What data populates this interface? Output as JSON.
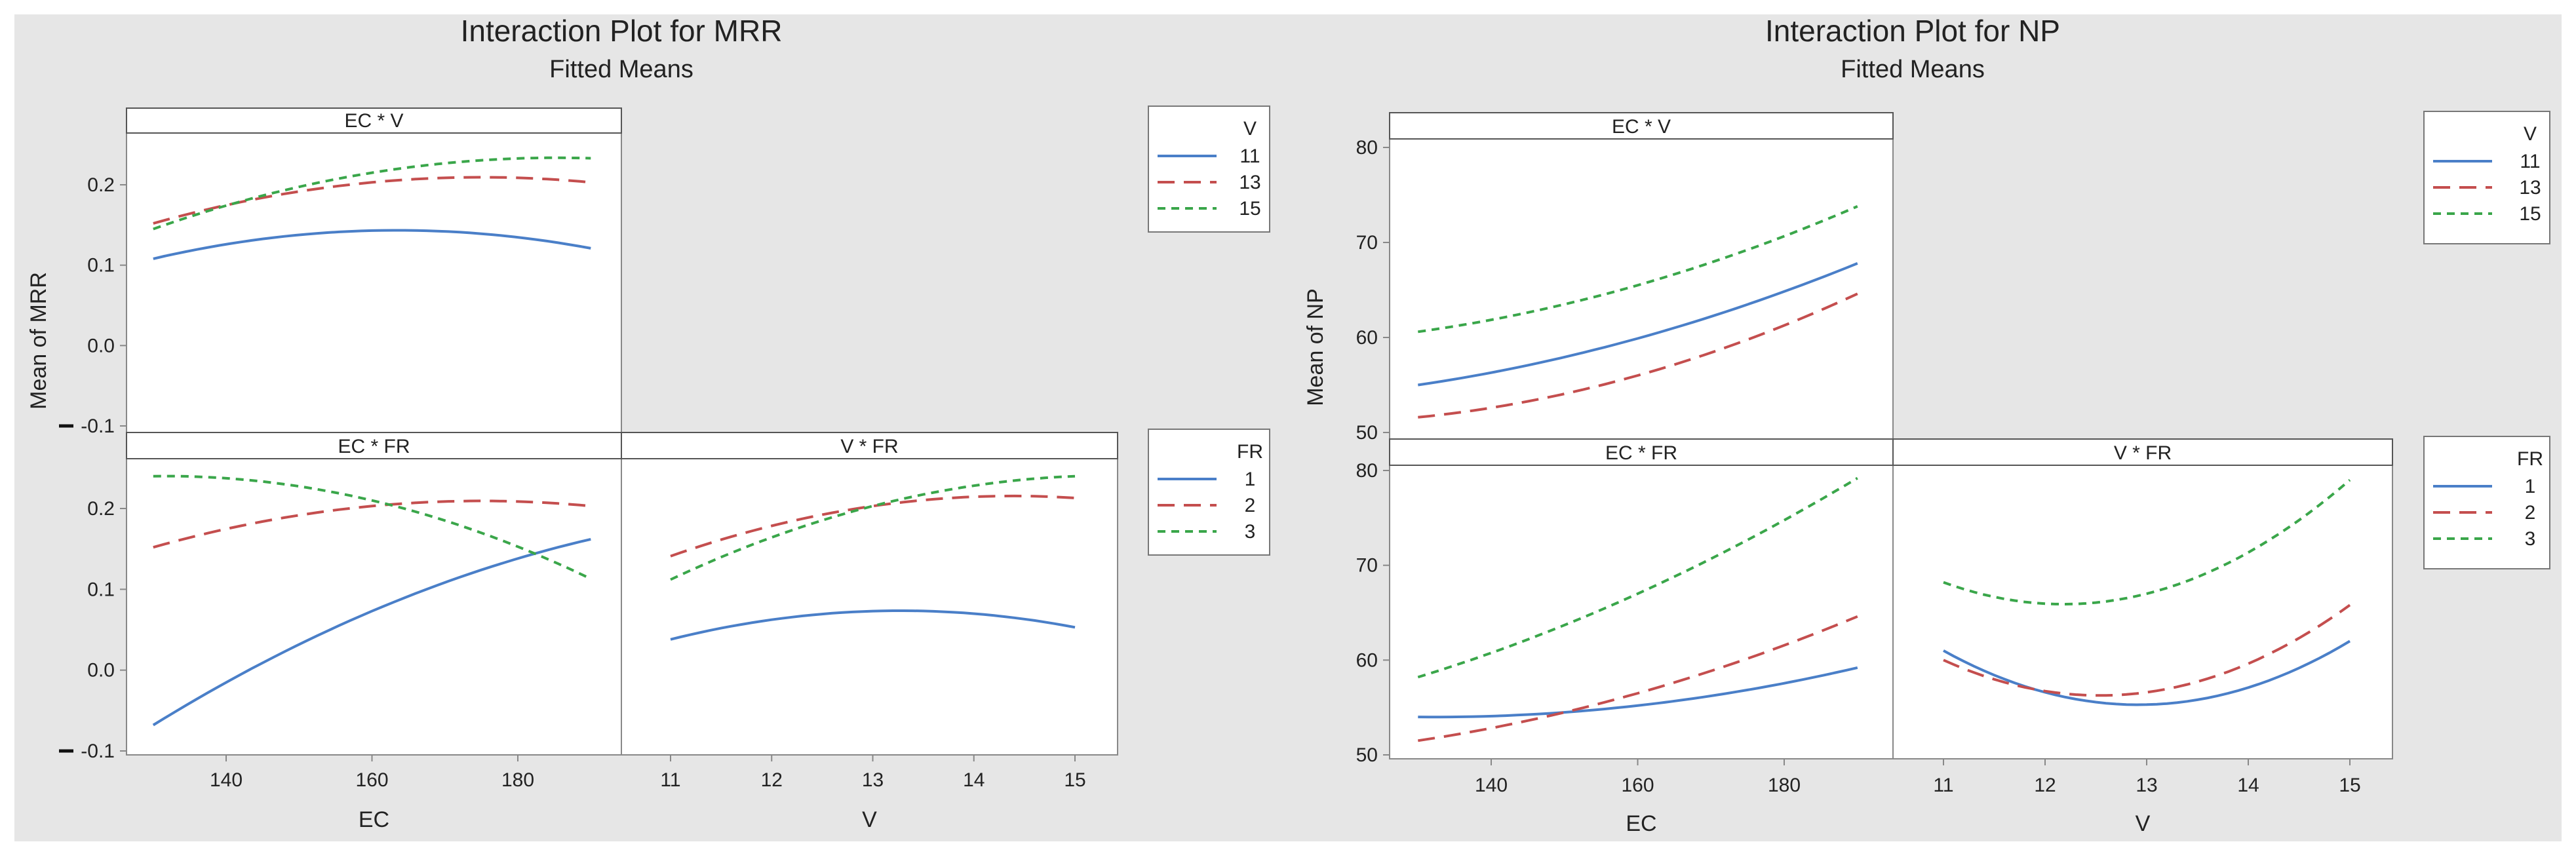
{
  "colors": {
    "s1": "#4a7fc8",
    "s2": "#c44e4e",
    "s3": "#3aa64a",
    "panel_bg": "#e6e6e6"
  },
  "chart_data": [
    {
      "type": "line",
      "title": "Interaction Plot for MRR",
      "subtitle": "Fitted Means",
      "ylabel": "Mean of MRR",
      "ylim": [
        -0.1,
        0.25
      ],
      "yticks": [
        "0.2",
        "0.1",
        "0.0",
        "-0.1"
      ],
      "panels": [
        {
          "strip": "EC * V",
          "xlabel": "",
          "legend_group": "V",
          "x": [
            130,
            160,
            190
          ],
          "xticks": [],
          "series": [
            {
              "name": "11",
              "values": [
                0.108,
                0.143,
                0.121
              ]
            },
            {
              "name": "13",
              "values": [
                0.152,
                0.203,
                0.203
              ]
            },
            {
              "name": "15",
              "values": [
                0.145,
                0.215,
                0.233
              ]
            }
          ]
        },
        {
          "strip": "EC * FR",
          "xlabel": "EC",
          "legend_group": "FR",
          "x": [
            130,
            160,
            190
          ],
          "xticks": [
            "140",
            "160",
            "180"
          ],
          "series": [
            {
              "name": "1",
              "values": [
                -0.068,
                0.073,
                0.162
              ]
            },
            {
              "name": "2",
              "values": [
                0.152,
                0.203,
                0.203
              ]
            },
            {
              "name": "3",
              "values": [
                0.24,
                0.21,
                0.113
              ]
            }
          ]
        },
        {
          "strip": "V * FR",
          "xlabel": "V",
          "legend_group": "FR",
          "x": [
            11,
            13,
            15
          ],
          "xticks": [
            "11",
            "12",
            "13",
            "14",
            "15"
          ],
          "series": [
            {
              "name": "1",
              "values": [
                0.038,
                0.073,
                0.053
              ]
            },
            {
              "name": "2",
              "values": [
                0.141,
                0.203,
                0.213
              ]
            },
            {
              "name": "3",
              "values": [
                0.112,
                0.203,
                0.24
              ]
            }
          ]
        }
      ],
      "legends": [
        {
          "title": "V",
          "items": [
            "11",
            "13",
            "15"
          ]
        },
        {
          "title": "FR",
          "items": [
            "1",
            "2",
            "3"
          ]
        }
      ]
    },
    {
      "type": "line",
      "title": "Interaction Plot for NP",
      "subtitle": "Fitted Means",
      "ylabel": "Mean of NP",
      "ylim": [
        50,
        80
      ],
      "yticks": [
        "80",
        "70",
        "60",
        "50"
      ],
      "panels": [
        {
          "strip": "EC * V",
          "xlabel": "",
          "legend_group": "V",
          "x": [
            130,
            160,
            190
          ],
          "xticks": [],
          "series": [
            {
              "name": "11",
              "values": [
                55.0,
                59.9,
                67.8
              ]
            },
            {
              "name": "13",
              "values": [
                51.6,
                56.0,
                64.6
              ]
            },
            {
              "name": "15",
              "values": [
                60.6,
                65.5,
                73.8
              ]
            }
          ]
        },
        {
          "strip": "EC * FR",
          "xlabel": "EC",
          "legend_group": "FR",
          "x": [
            130,
            160,
            190
          ],
          "xticks": [
            "140",
            "160",
            "180"
          ],
          "series": [
            {
              "name": "1",
              "values": [
                54.0,
                55.2,
                59.2
              ]
            },
            {
              "name": "2",
              "values": [
                51.5,
                56.5,
                64.6
              ]
            },
            {
              "name": "3",
              "values": [
                58.2,
                67.0,
                79.2
              ]
            }
          ]
        },
        {
          "strip": "V * FR",
          "xlabel": "V",
          "legend_group": "FR",
          "x": [
            11,
            13,
            15
          ],
          "xticks": [
            "11",
            "12",
            "13",
            "14",
            "15"
          ],
          "series": [
            {
              "name": "1",
              "values": [
                61.0,
                55.3,
                62.0
              ]
            },
            {
              "name": "2",
              "values": [
                60.0,
                56.6,
                65.8
              ]
            },
            {
              "name": "3",
              "values": [
                68.2,
                67.0,
                79.0
              ]
            }
          ]
        }
      ],
      "legends": [
        {
          "title": "V",
          "items": [
            "11",
            "13",
            "15"
          ]
        },
        {
          "title": "FR",
          "items": [
            "1",
            "2",
            "3"
          ]
        }
      ]
    }
  ]
}
